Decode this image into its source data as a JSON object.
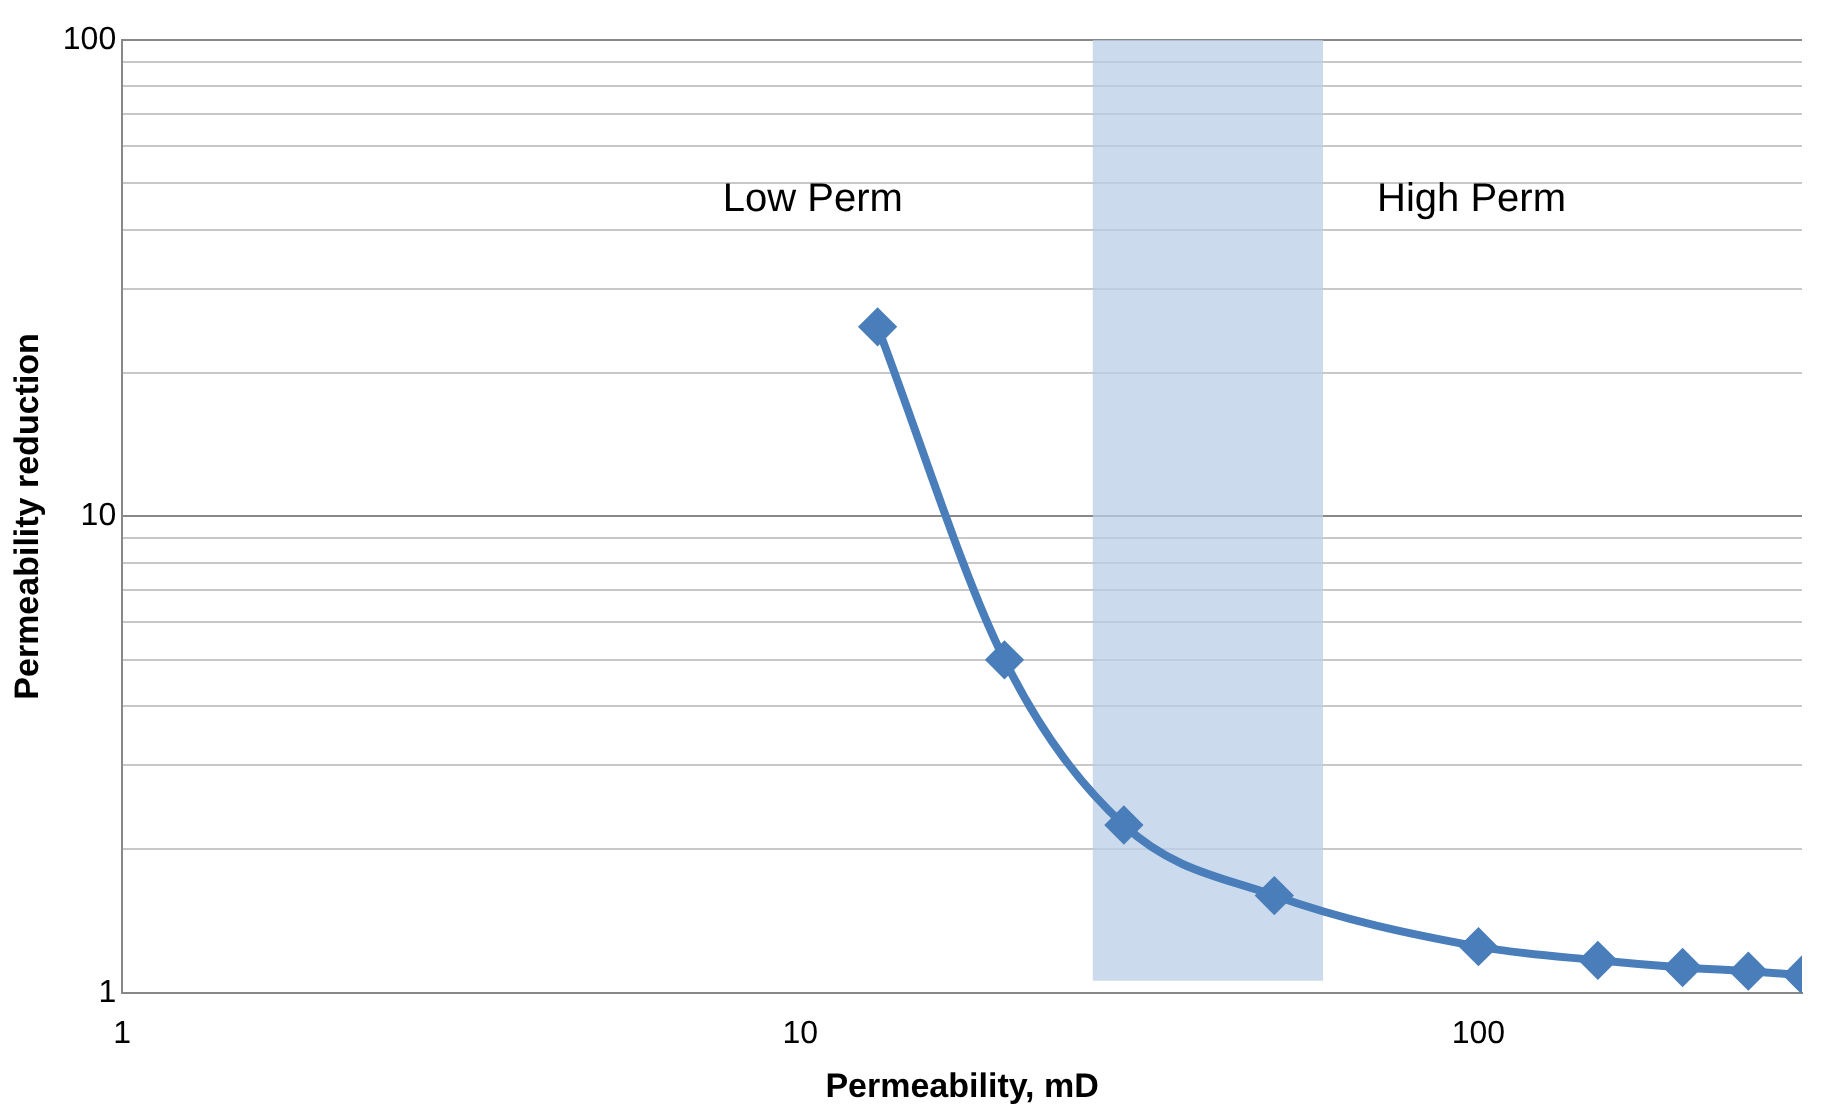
{
  "chart_data": {
    "type": "line",
    "xlabel": "Permeability, mD",
    "ylabel": "Permeability reduction",
    "x": [
      13,
      20,
      30,
      50,
      100,
      150,
      200,
      250,
      300
    ],
    "series": [
      {
        "color": "#4a7ebb",
        "values": [
          25,
          5,
          2.25,
          1.6,
          1.25,
          1.17,
          1.13,
          1.11,
          1.09
        ]
      }
    ],
    "log": "xy",
    "xlim": [
      1,
      300
    ],
    "ylim": [
      1,
      100
    ],
    "xticks": [
      1,
      10,
      100
    ],
    "yticks": [
      1,
      10,
      100
    ],
    "grid": "y",
    "marker": "diamond",
    "line_style": "solid",
    "legend": false,
    "bands": [
      {
        "axis": "x",
        "from": 27,
        "to": 59,
        "color": "#b9cde5"
      }
    ],
    "annotations": [
      "Low Perm",
      "High Perm"
    ]
  }
}
